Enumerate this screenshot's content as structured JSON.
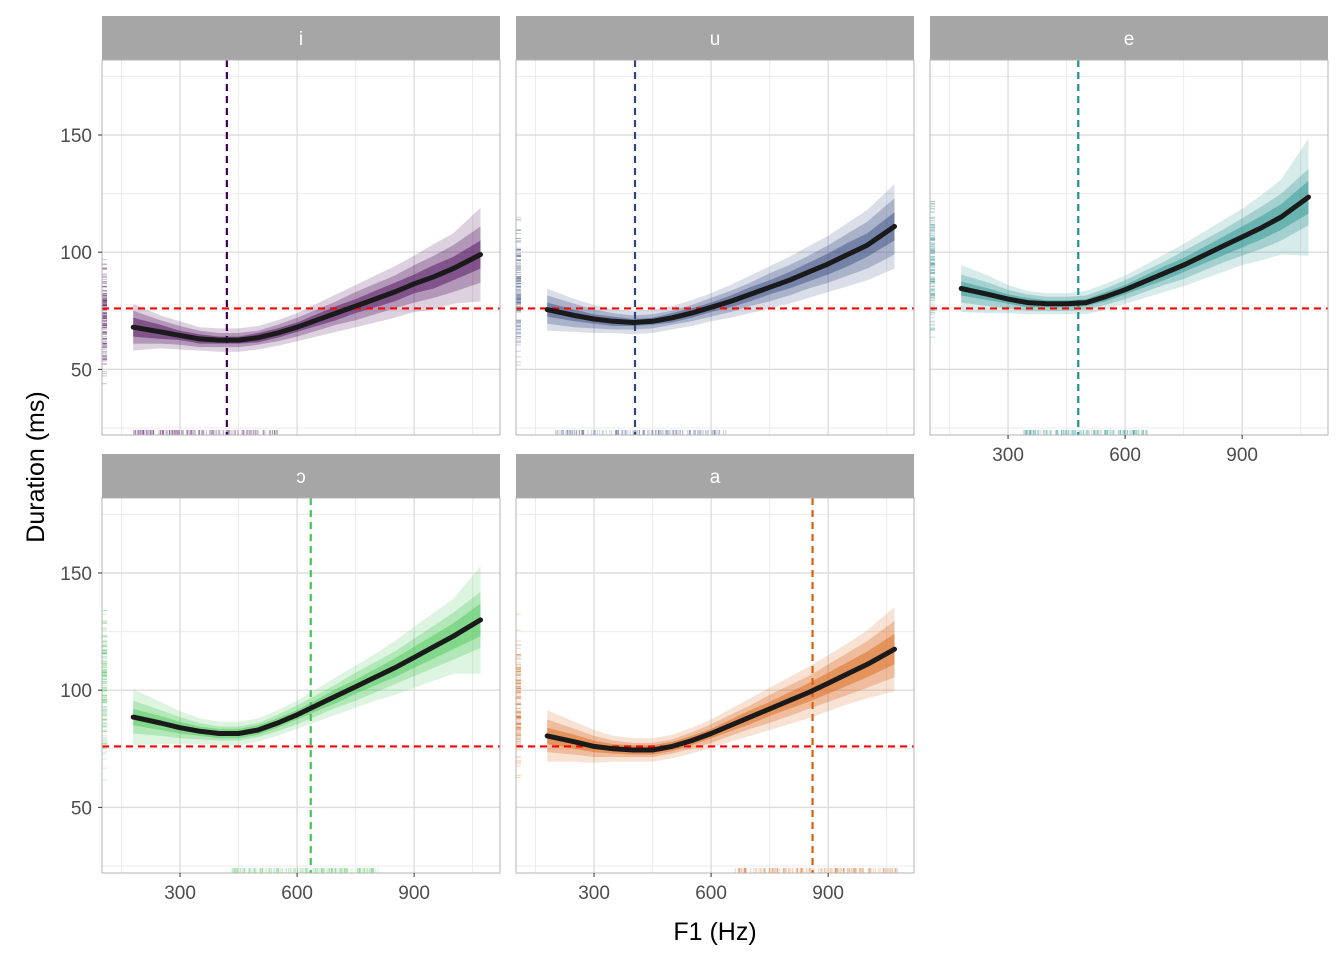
{
  "chart_data": {
    "type": "line",
    "xlabel": "F1 (Hz)",
    "ylabel": "Duration (ms)",
    "xlim": [
      100,
      1120
    ],
    "ylim": [
      22,
      182
    ],
    "x_ticks": [
      300,
      600,
      900
    ],
    "y_ticks": [
      50,
      100,
      150
    ],
    "grid": true,
    "reference_line": {
      "y": 76,
      "color": "#ff0000",
      "style": "dashed"
    },
    "interval_bands": 3,
    "smooth_color": "#1a1a1a",
    "panels": [
      {
        "label": "i",
        "color": "#440154",
        "mean_f1": 420,
        "x": [
          180,
          250,
          300,
          350,
          400,
          450,
          500,
          550,
          600,
          650,
          700,
          750,
          800,
          850,
          900,
          950,
          1000,
          1070
        ],
        "y": [
          68,
          66,
          64.5,
          63,
          62.5,
          62.5,
          63.5,
          65.5,
          68,
          71,
          74,
          77,
          80,
          83,
          86.5,
          89.5,
          93,
          99
        ],
        "band_halfwidth": [
          [
            4,
            7,
            10
          ],
          [
            3,
            5,
            7
          ],
          [
            2,
            4,
            6
          ],
          [
            2,
            3.5,
            5
          ],
          [
            1.5,
            3,
            5
          ],
          [
            1.5,
            3,
            5
          ],
          [
            2,
            3,
            5
          ],
          [
            2,
            3.5,
            5.5
          ],
          [
            2,
            4,
            6
          ],
          [
            2.5,
            4.5,
            7
          ],
          [
            3,
            5,
            8
          ],
          [
            3,
            6,
            9
          ],
          [
            3.5,
            6.5,
            10
          ],
          [
            4,
            7,
            11
          ],
          [
            4,
            8,
            12
          ],
          [
            5,
            9,
            14
          ],
          [
            5,
            10,
            15
          ],
          [
            6,
            12,
            20
          ]
        ],
        "rug_x_range": [
          180,
          560
        ],
        "rug_y_range": [
          35,
          110
        ]
      },
      {
        "label": "u",
        "color": "#31467e",
        "mean_f1": 405,
        "x": [
          180,
          250,
          300,
          350,
          400,
          450,
          500,
          550,
          600,
          650,
          700,
          750,
          800,
          850,
          900,
          950,
          1000,
          1070
        ],
        "y": [
          75.5,
          73,
          71.5,
          70.5,
          70,
          70.5,
          72,
          74,
          76.5,
          79,
          82,
          85,
          88,
          91.5,
          95,
          99,
          103,
          111
        ],
        "band_halfwidth": [
          [
            3,
            6,
            9
          ],
          [
            2.5,
            5,
            7
          ],
          [
            2,
            4,
            6
          ],
          [
            2,
            3.5,
            5
          ],
          [
            1.5,
            3,
            5
          ],
          [
            1.5,
            3,
            5
          ],
          [
            2,
            3,
            5
          ],
          [
            2,
            3.5,
            5.5
          ],
          [
            2,
            4,
            6
          ],
          [
            2.5,
            4.5,
            7
          ],
          [
            3,
            5,
            8
          ],
          [
            3,
            6,
            9
          ],
          [
            3.5,
            6.5,
            10
          ],
          [
            4,
            7,
            11
          ],
          [
            4.5,
            8,
            12
          ],
          [
            5,
            9,
            13.5
          ],
          [
            5,
            10,
            15
          ],
          [
            6,
            12,
            18
          ]
        ],
        "rug_x_range": [
          200,
          640
        ],
        "rug_y_range": [
          32,
          135
        ]
      },
      {
        "label": "e",
        "color": "#21908c",
        "mean_f1": 480,
        "x": [
          180,
          250,
          300,
          350,
          400,
          450,
          500,
          550,
          600,
          650,
          700,
          750,
          800,
          850,
          900,
          950,
          1000,
          1070
        ],
        "y": [
          84.5,
          82,
          80,
          78.5,
          78,
          78,
          78.5,
          81,
          84,
          87.5,
          91,
          94.5,
          98.5,
          102.5,
          106.5,
          110.5,
          115,
          123.5
        ],
        "band_halfwidth": [
          [
            3,
            6,
            10
          ],
          [
            2.5,
            5,
            8
          ],
          [
            2,
            4,
            6
          ],
          [
            2,
            3.5,
            5
          ],
          [
            1.5,
            3,
            4.5
          ],
          [
            1.5,
            3,
            4.5
          ],
          [
            1.5,
            3,
            5
          ],
          [
            2,
            3.5,
            5.5
          ],
          [
            2,
            4,
            6
          ],
          [
            2.5,
            4.5,
            7
          ],
          [
            3,
            5,
            8
          ],
          [
            3,
            6,
            9
          ],
          [
            3.5,
            6.5,
            10
          ],
          [
            4,
            7,
            11
          ],
          [
            4.5,
            8,
            12
          ],
          [
            5,
            9,
            14
          ],
          [
            5.5,
            10,
            16
          ],
          [
            7,
            12,
            25
          ]
        ],
        "rug_x_range": [
          340,
          660
        ],
        "rug_y_range": [
          40,
          150
        ]
      },
      {
        "label": "ɔ",
        "color": "#44c553",
        "mean_f1": 635,
        "x": [
          180,
          250,
          300,
          350,
          400,
          450,
          500,
          550,
          600,
          650,
          700,
          750,
          800,
          850,
          900,
          950,
          1000,
          1070
        ],
        "y": [
          88.5,
          86,
          84,
          82.5,
          81.5,
          81.5,
          83,
          86,
          89.5,
          93.5,
          97.5,
          101.5,
          105.5,
          109.5,
          114,
          118.5,
          123,
          130
        ],
        "band_halfwidth": [
          [
            3.5,
            7,
            12
          ],
          [
            3,
            5.5,
            9
          ],
          [
            2.5,
            4.5,
            7
          ],
          [
            2,
            3.5,
            5.5
          ],
          [
            2,
            3,
            5
          ],
          [
            2,
            3,
            5
          ],
          [
            2,
            3,
            5
          ],
          [
            2,
            3.5,
            5.5
          ],
          [
            2,
            4,
            6
          ],
          [
            2.5,
            4.5,
            7
          ],
          [
            3,
            5,
            8
          ],
          [
            3,
            6,
            9
          ],
          [
            3.5,
            6.5,
            10
          ],
          [
            4,
            7,
            11.5
          ],
          [
            4.5,
            8,
            13
          ],
          [
            5,
            9,
            14.5
          ],
          [
            5.5,
            10,
            16
          ],
          [
            7,
            12,
            23
          ]
        ],
        "rug_x_range": [
          430,
          820
        ],
        "rug_y_range": [
          40,
          165
        ]
      },
      {
        "label": "a",
        "color": "#d95f0e",
        "mean_f1": 860,
        "x": [
          180,
          250,
          300,
          350,
          400,
          450,
          500,
          550,
          600,
          650,
          700,
          750,
          800,
          850,
          900,
          950,
          1000,
          1070
        ],
        "y": [
          80.5,
          78,
          76,
          75,
          74.5,
          74.5,
          76,
          78.5,
          81.5,
          85,
          88.5,
          92,
          95.5,
          99,
          103,
          107,
          111,
          117.5
        ],
        "band_halfwidth": [
          [
            3.5,
            7,
            11
          ],
          [
            3,
            5.5,
            8.5
          ],
          [
            2.5,
            4.5,
            7
          ],
          [
            2,
            3.5,
            5.5
          ],
          [
            2,
            3,
            5
          ],
          [
            2,
            3,
            5
          ],
          [
            2,
            3,
            5
          ],
          [
            2,
            3.5,
            5.5
          ],
          [
            2,
            4,
            6
          ],
          [
            2.5,
            4.5,
            7
          ],
          [
            3,
            5,
            8
          ],
          [
            3,
            6,
            9
          ],
          [
            3.5,
            6.5,
            10
          ],
          [
            4,
            7,
            11
          ],
          [
            4.5,
            8,
            12
          ],
          [
            5,
            9,
            13
          ],
          [
            5.5,
            10,
            14.5
          ],
          [
            6.5,
            12,
            18
          ]
        ],
        "rug_x_range": [
          660,
          1080
        ],
        "rug_y_range": [
          45,
          145
        ]
      }
    ]
  }
}
